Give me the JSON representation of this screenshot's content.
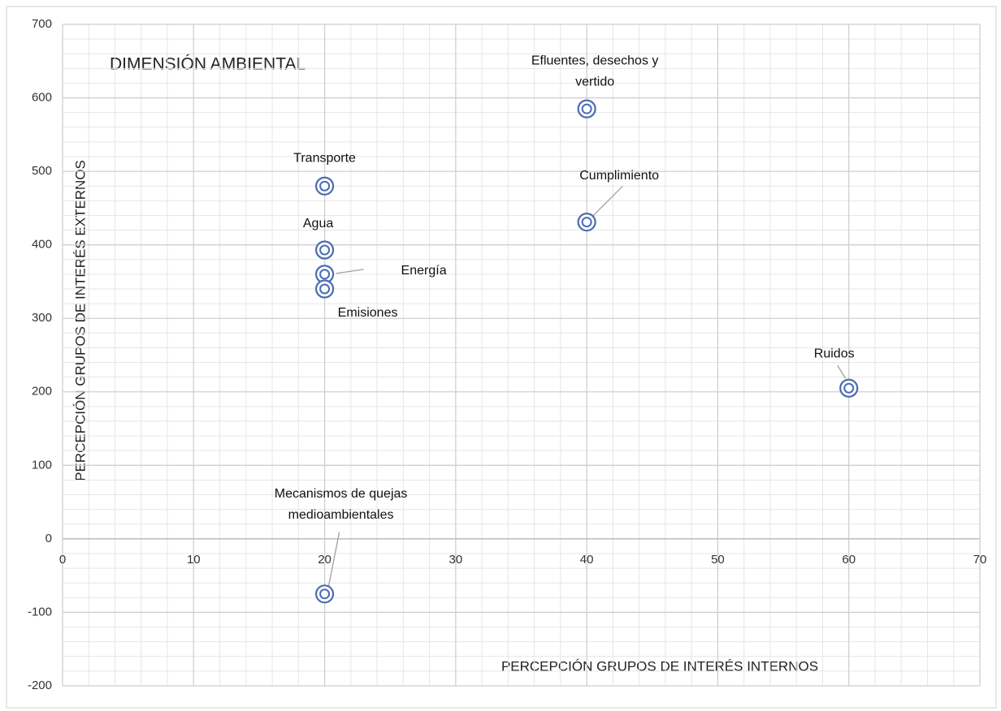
{
  "chart_data": {
    "type": "scatter",
    "title": "DIMENSIÓN AMBIENTAL",
    "xlabel": "PERCEPCIÓN GRUPOS DE INTERÉS INTERNOS",
    "ylabel": "PERCEPCIÓN GRUPOS DE INTERÉS EXTERNOS",
    "x": [
      20,
      20,
      20,
      20,
      40,
      40,
      60,
      20
    ],
    "values": [
      480,
      393,
      360,
      340,
      585,
      431,
      205,
      -75
    ],
    "point_labels": [
      [
        "Transporte"
      ],
      [
        "Agua"
      ],
      [
        "Energía"
      ],
      [
        "Emisiones"
      ],
      [
        "Efluentes, desechos y",
        "vertido"
      ],
      [
        "Cumplimiento"
      ],
      [
        "Ruidos"
      ],
      [
        "Mecanismos de quejas",
        "medioambientales"
      ]
    ],
    "color": "#4a6bb3",
    "xlim": [
      0,
      70
    ],
    "xticks": [
      0,
      10,
      20,
      30,
      40,
      50,
      60,
      70
    ],
    "ylim": [
      -200,
      700
    ],
    "yticks": [
      -200,
      -100,
      0,
      100,
      200,
      300,
      400,
      500,
      600,
      700
    ],
    "grid": true
  }
}
